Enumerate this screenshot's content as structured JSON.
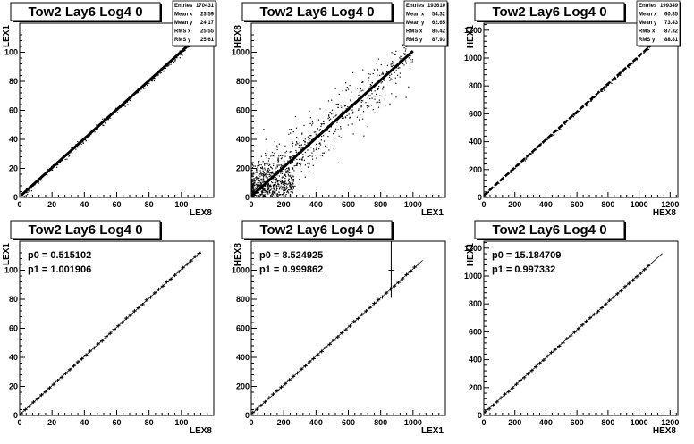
{
  "chart_data": [
    {
      "type": "scatter",
      "title": "Tow2 Lay6 Log4 0",
      "xlabel": "LEX8",
      "ylabel": "LEX1",
      "xlim": [
        0,
        120
      ],
      "ylim": [
        0,
        120
      ],
      "xticks": [
        0,
        20,
        40,
        60,
        80,
        100
      ],
      "yticks": [
        0,
        20,
        40,
        60,
        80,
        100
      ],
      "stats": [
        {
          "label": "Entries",
          "value": "170431"
        },
        {
          "label": "Mean x",
          "value": "23.59"
        },
        {
          "label": "Mean y",
          "value": "24.17"
        },
        {
          "label": "RMS x",
          "value": "25.55"
        },
        {
          "label": "RMS y",
          "value": "25.61"
        }
      ],
      "trend": {
        "slope": 1.0,
        "intercept": 0.5,
        "x_from": 1,
        "x_to": 108
      },
      "scatter_spread": 1.2
    },
    {
      "type": "scatter",
      "title": "Tow2 Lay6 Log4 0",
      "xlabel": "LEX1",
      "ylabel": "HEX8",
      "xlim": [
        0,
        1200
      ],
      "ylim": [
        0,
        1200
      ],
      "xticks": [
        0,
        200,
        400,
        600,
        800,
        1000
      ],
      "yticks": [
        0,
        200,
        400,
        600,
        800,
        1000
      ],
      "stats": [
        {
          "label": "Entries",
          "value": "193610"
        },
        {
          "label": "Mean x",
          "value": "54.32"
        },
        {
          "label": "Mean y",
          "value": "62.65"
        },
        {
          "label": "RMS x",
          "value": "86.42"
        },
        {
          "label": "RMS y",
          "value": "87.93"
        }
      ],
      "trend": {
        "slope": 1.0,
        "intercept": 8.5,
        "x_from": 0,
        "x_to": 1000
      },
      "scatter_spread": 60
    },
    {
      "type": "scatter",
      "title": "Tow2 Lay6 Log4 0",
      "xlabel": "HEX8",
      "ylabel": "HEX1",
      "xlim": [
        0,
        1250
      ],
      "ylim": [
        0,
        1250
      ],
      "xticks": [
        0,
        200,
        400,
        600,
        800,
        1000,
        1200
      ],
      "yticks": [
        0,
        200,
        400,
        600,
        800,
        1000,
        1200
      ],
      "stats": [
        {
          "label": "Entries",
          "value": "199349"
        },
        {
          "label": "Mean x",
          "value": "60.85"
        },
        {
          "label": "Mean y",
          "value": "73.43"
        },
        {
          "label": "RMS x",
          "value": "87.32"
        },
        {
          "label": "RMS y",
          "value": "88.81"
        }
      ],
      "trend": {
        "slope": 1.0,
        "intercept": 15,
        "x_from": 0,
        "x_to": 1150
      },
      "scatter_spread": 6
    },
    {
      "type": "line",
      "title": "Tow2 Lay6 Log4 0",
      "xlabel": "LEX8",
      "ylabel": "LEX1",
      "xlim": [
        0,
        120
      ],
      "ylim": [
        0,
        120
      ],
      "xticks": [
        0,
        20,
        40,
        60,
        80,
        100
      ],
      "yticks": [
        0,
        20,
        40,
        60,
        80,
        100
      ],
      "fit": [
        {
          "label": "p0 = 0.515102"
        },
        {
          "label": "p1 = 1.001906"
        }
      ],
      "fit_line": {
        "intercept": 0.515102,
        "slope": 1.001906,
        "x_from": 0,
        "x_to": 112
      },
      "profile": {
        "x_from": 1,
        "x_to": 111,
        "step": 2.5
      }
    },
    {
      "type": "line",
      "title": "Tow2 Lay6 Log4 0",
      "xlabel": "LEX1",
      "ylabel": "HEX8",
      "xlim": [
        0,
        1200
      ],
      "ylim": [
        0,
        1200
      ],
      "xticks": [
        0,
        200,
        400,
        600,
        800,
        1000
      ],
      "yticks": [
        0,
        200,
        400,
        600,
        800,
        1000
      ],
      "fit": [
        {
          "label": "p0 = 8.524925"
        },
        {
          "label": "p1 = 0.999862"
        }
      ],
      "fit_line": {
        "intercept": 8.524925,
        "slope": 0.999862,
        "x_from": 0,
        "x_to": 1060
      },
      "profile": {
        "x_from": 10,
        "x_to": 1040,
        "step": 25
      }
    },
    {
      "type": "line",
      "title": "Tow2 Lay6 Log4 0",
      "xlabel": "HEX8",
      "ylabel": "HEX1",
      "xlim": [
        0,
        1250
      ],
      "ylim": [
        0,
        1250
      ],
      "xticks": [
        0,
        200,
        400,
        600,
        800,
        1000,
        1200
      ],
      "yticks": [
        0,
        200,
        400,
        600,
        800,
        1000,
        1200
      ],
      "fit": [
        {
          "label": "p0 = 15.184709"
        },
        {
          "label": "p1 = 0.997332"
        }
      ],
      "fit_line": {
        "intercept": 15.184709,
        "slope": 0.997332,
        "x_from": 0,
        "x_to": 1150
      },
      "profile": {
        "x_from": 10,
        "x_to": 1080,
        "step": 25
      }
    }
  ]
}
